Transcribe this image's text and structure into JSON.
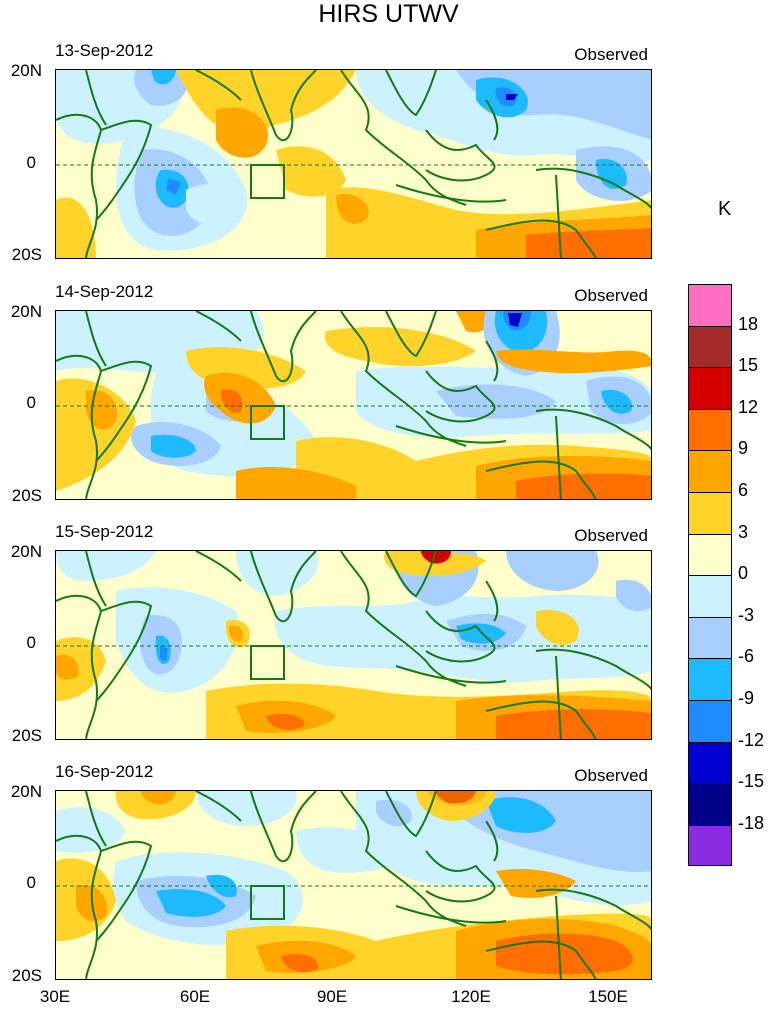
{
  "title": "HIRS UTWV",
  "panels": [
    {
      "date": "13-Sep-2012",
      "label": "Observed"
    },
    {
      "date": "14-Sep-2012",
      "label": "Observed"
    },
    {
      "date": "15-Sep-2012",
      "label": "Observed"
    },
    {
      "date": "16-Sep-2012",
      "label": "Observed"
    }
  ],
  "y_ticks": [
    "20N",
    "0",
    "20S"
  ],
  "x_ticks": [
    "30E",
    "60E",
    "90E",
    "120E",
    "150E"
  ],
  "colorbar": {
    "unit": "K",
    "labels": [
      "18",
      "15",
      "12",
      "9",
      "6",
      "3",
      "0",
      "-3",
      "-6",
      "-9",
      "-12",
      "-15",
      "-18"
    ],
    "colors": [
      "#ff6ec0",
      "#a52a2a",
      "#d40000",
      "#ff6e00",
      "#ffa600",
      "#ffd32a",
      "#ffffcc",
      "#ccf2ff",
      "#a8cfff",
      "#1ebaff",
      "#1e8cff",
      "#0000d0",
      "#00008b",
      "#8a2be2"
    ]
  },
  "contour_colors": {
    "pos3": "#ffd32a",
    "pos6": "#ffa600",
    "pos9": "#ff6e00",
    "pos12": "#d40000",
    "neg3": "#ccf2ff",
    "neg6": "#a8cfff",
    "neg9": "#1ebaff",
    "neg12": "#1e8cff",
    "neg15": "#0000d0",
    "coast": "#157a15"
  }
}
